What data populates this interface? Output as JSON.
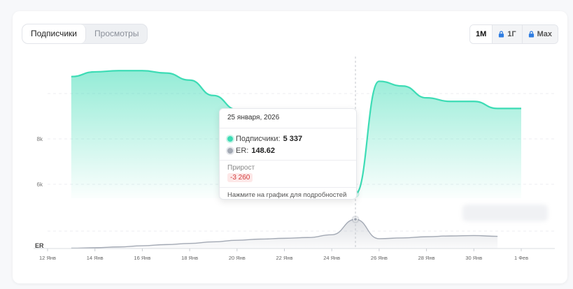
{
  "toggle": {
    "subscribers": "Подписчики",
    "views": "Просмотры"
  },
  "range": {
    "month": "1М",
    "year": "1Г",
    "max": "Max"
  },
  "tooltip": {
    "date": "25 января, 2026",
    "subs_label": "Подписчики:",
    "subs_value": "5 337",
    "er_label": "ER:",
    "er_value": "148.62",
    "growth_label": "Прирост",
    "growth_value": "-3 260",
    "footer": "Нажмите на график для подробностей"
  },
  "colors": {
    "subs": "#3ddcb5",
    "er": "#a3a9b4"
  },
  "chart_data": [
    {
      "type": "area",
      "series": [
        {
          "name": "Подписчики",
          "x": [
            "2026-01-13",
            "2026-01-14",
            "2026-01-15",
            "2026-01-16",
            "2026-01-17",
            "2026-01-18",
            "2026-01-19",
            "2026-01-20",
            "2026-01-21",
            "2026-01-22",
            "2026-01-23",
            "2026-01-24",
            "2026-01-25",
            "2026-01-26",
            "2026-01-27",
            "2026-01-28",
            "2026-01-29",
            "2026-01-30",
            "2026-01-31",
            "2026-02-01"
          ],
          "values": [
            10300,
            10500,
            10550,
            10550,
            10450,
            10150,
            9500,
            8900,
            8780,
            8770,
            8770,
            8700,
            5337,
            10100,
            9900,
            9400,
            9250,
            9250,
            8950,
            8950
          ]
        }
      ],
      "yticks": [
        "6k",
        "8k"
      ],
      "ylim": [
        4500,
        11000
      ]
    },
    {
      "type": "area",
      "series": [
        {
          "name": "ER",
          "x": [
            "2026-01-13",
            "2026-01-14",
            "2026-01-15",
            "2026-01-16",
            "2026-01-17",
            "2026-01-18",
            "2026-01-19",
            "2026-01-20",
            "2026-01-21",
            "2026-01-22",
            "2026-01-23",
            "2026-01-24",
            "2026-01-25",
            "2026-01-26",
            "2026-01-27",
            "2026-01-28",
            "2026-01-29",
            "2026-01-30",
            "2026-01-31"
          ],
          "values": [
            2,
            4,
            8,
            14,
            20,
            26,
            34,
            42,
            48,
            52,
            56,
            70,
            148.62,
            50,
            54,
            60,
            64,
            66,
            62
          ]
        }
      ],
      "ylabel": "ER",
      "ylim": [
        0,
        160
      ]
    }
  ],
  "xticks": [
    "12 Янв",
    "14 Янв",
    "16 Янв",
    "18 Янв",
    "20 Янв",
    "22 Янв",
    "24 Янв",
    "26 Янв",
    "28 Янв",
    "30 Янв",
    "1 Фев"
  ]
}
